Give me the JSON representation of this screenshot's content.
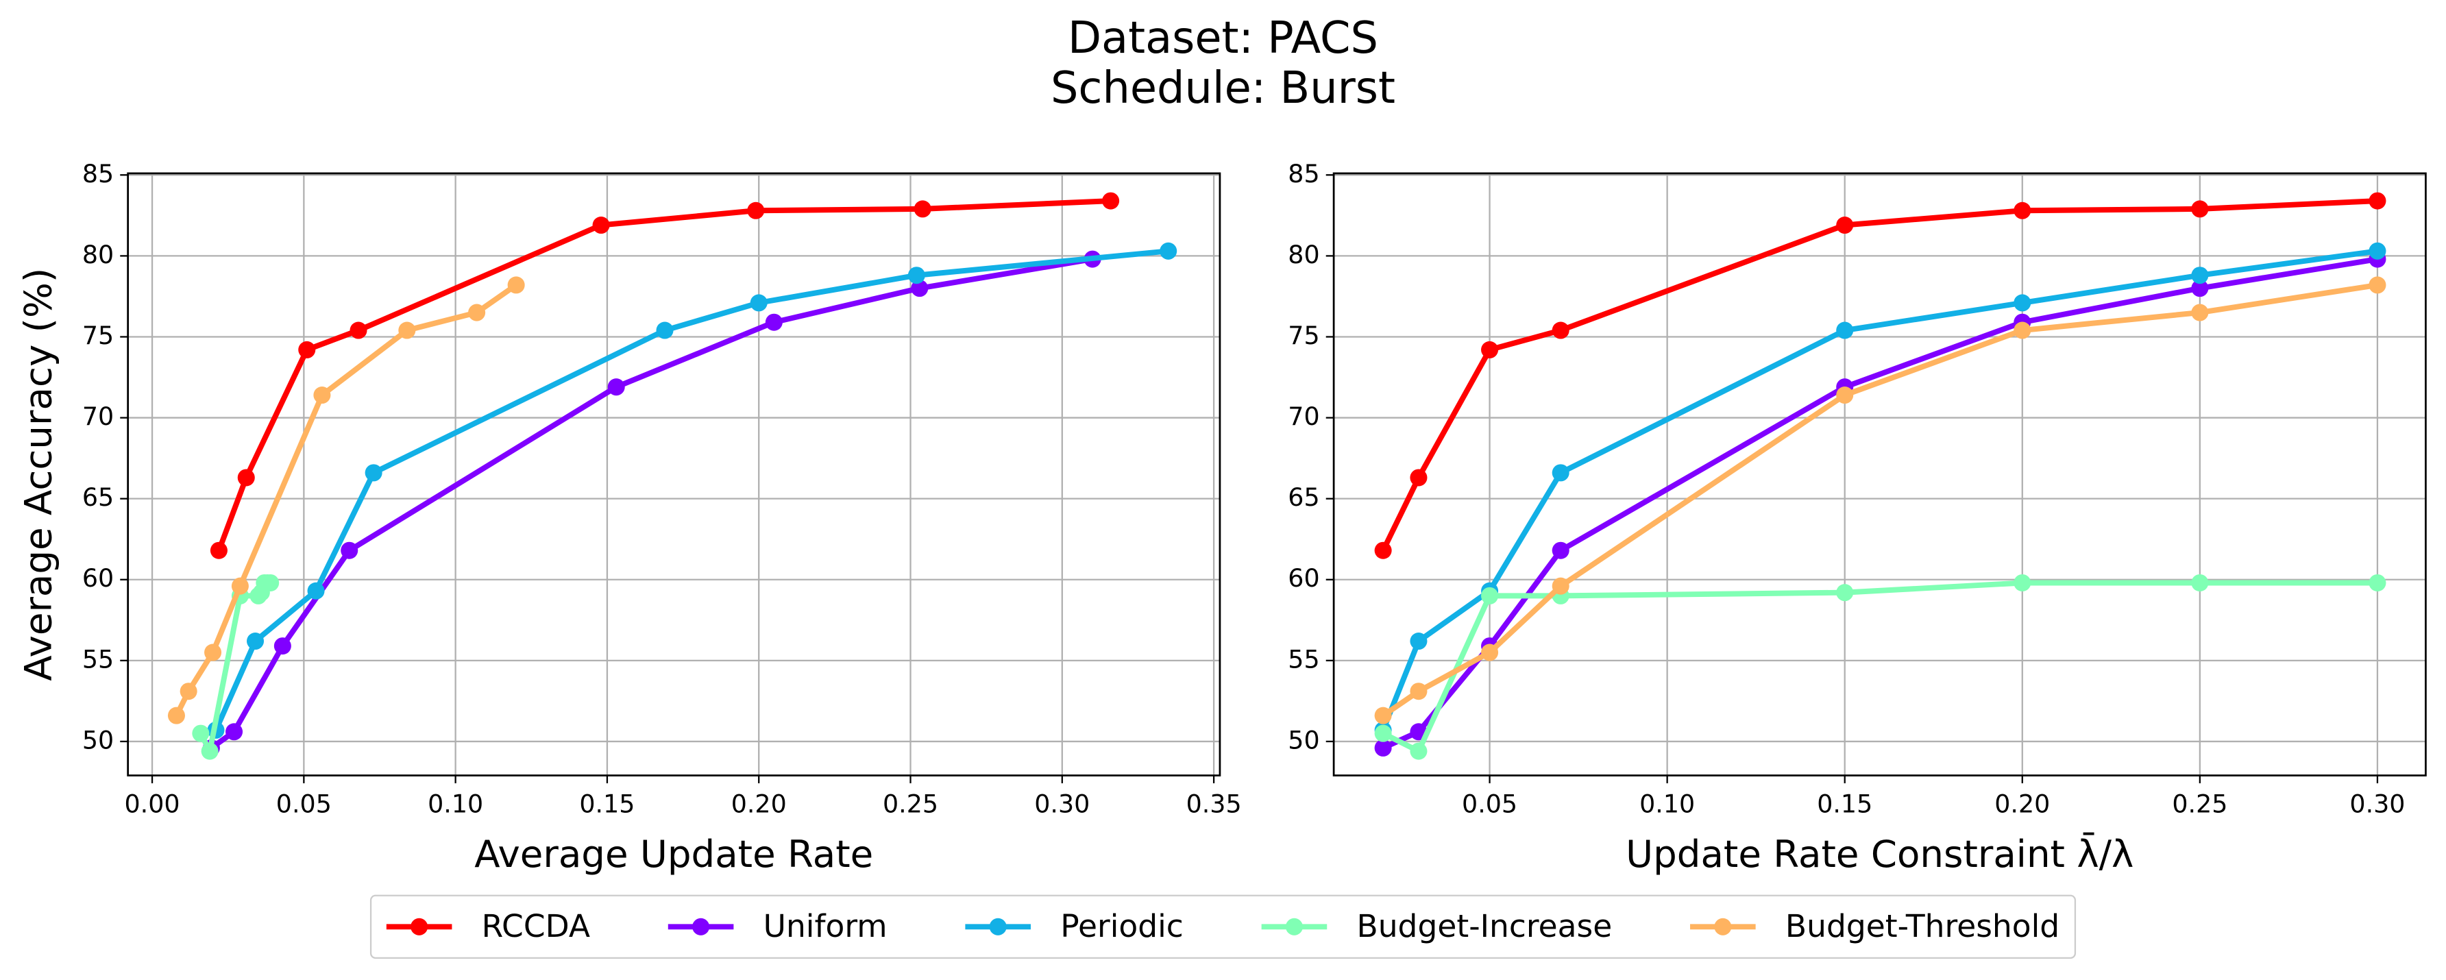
{
  "title": [
    "Dataset: PACS",
    "Schedule: Burst"
  ],
  "legend": "bottom",
  "chart_data": [
    {
      "type": "line",
      "xlabel": "Average Update Rate",
      "ylabel": "Average Accuracy (%)",
      "xlim": [
        -0.008,
        0.352
      ],
      "ylim": [
        47.9,
        85.1
      ],
      "grid": true,
      "xticks": [
        {
          "value": 0,
          "label": "0.00"
        },
        {
          "value": 0.05,
          "label": "0.05"
        },
        {
          "value": 0.1,
          "label": "0.10"
        },
        {
          "value": 0.15,
          "label": "0.15"
        },
        {
          "value": 0.2,
          "label": "0.20"
        },
        {
          "value": 0.25,
          "label": "0.25"
        },
        {
          "value": 0.3,
          "label": "0.30"
        },
        {
          "value": 0.35,
          "label": "0.35"
        }
      ],
      "yticks": [
        50,
        55,
        60,
        65,
        70,
        75,
        80,
        85
      ],
      "series": [
        {
          "name": "RCCDA",
          "color": "#ff0000",
          "x": [
            0.022,
            0.031,
            0.051,
            0.068,
            0.148,
            0.199,
            0.254,
            0.316
          ],
          "values": [
            61.8,
            66.3,
            74.2,
            75.4,
            81.9,
            82.8,
            82.9,
            83.4
          ]
        },
        {
          "name": "Uniform",
          "color": "#8000ff",
          "x": [
            0.0195,
            0.027,
            0.043,
            0.065,
            0.153,
            0.205,
            0.253,
            0.31
          ],
          "values": [
            49.6,
            50.6,
            55.9,
            61.8,
            71.9,
            75.9,
            78.0,
            79.8
          ]
        },
        {
          "name": "Periodic",
          "color": "#12b0e6",
          "x": [
            0.021,
            0.034,
            0.054,
            0.073,
            0.169,
            0.2,
            0.252,
            0.335
          ],
          "values": [
            50.7,
            56.2,
            59.3,
            66.6,
            75.4,
            77.1,
            78.8,
            80.3
          ]
        },
        {
          "name": "Budget-Increase",
          "color": "#80ffb4",
          "x": [
            0.016,
            0.019,
            0.029,
            0.035,
            0.036,
            0.037,
            0.038,
            0.039
          ],
          "values": [
            50.5,
            49.4,
            59.0,
            59.0,
            59.2,
            59.8,
            59.8,
            59.8
          ]
        },
        {
          "name": "Budget-Threshold",
          "color": "#ffb360",
          "x": [
            0.008,
            0.012,
            0.02,
            0.029,
            0.056,
            0.084,
            0.107,
            0.12
          ],
          "values": [
            51.6,
            53.1,
            55.5,
            59.6,
            71.4,
            75.4,
            76.5,
            78.2
          ]
        }
      ]
    },
    {
      "type": "line",
      "xlabel": "Update Rate Constraint λ̄/λ",
      "xlim": [
        0.0061,
        0.3136
      ],
      "ylim": [
        47.9,
        85.1
      ],
      "grid": true,
      "xticks": [
        {
          "value": 0.05,
          "label": "0.05"
        },
        {
          "value": 0.1,
          "label": "0.10"
        },
        {
          "value": 0.15,
          "label": "0.15"
        },
        {
          "value": 0.2,
          "label": "0.20"
        },
        {
          "value": 0.25,
          "label": "0.25"
        },
        {
          "value": 0.3,
          "label": "0.30"
        }
      ],
      "yticks": [
        50,
        55,
        60,
        65,
        70,
        75,
        80,
        85
      ],
      "x": [
        0.02,
        0.03,
        0.05,
        0.07,
        0.15,
        0.2,
        0.25,
        0.3
      ],
      "series": [
        {
          "color": "#ff0000",
          "values": [
            61.8,
            66.3,
            74.2,
            75.4,
            81.9,
            82.8,
            82.9,
            83.4
          ]
        },
        {
          "color": "#8000ff",
          "values": [
            49.6,
            50.6,
            55.9,
            61.8,
            71.9,
            75.9,
            78.0,
            79.8
          ]
        },
        {
          "color": "#12b0e6",
          "values": [
            50.7,
            56.2,
            59.3,
            66.6,
            75.4,
            77.1,
            78.8,
            80.3
          ]
        },
        {
          "color": "#80ffb4",
          "values": [
            50.5,
            49.4,
            59.0,
            59.0,
            59.2,
            59.8,
            59.8,
            59.8
          ]
        },
        {
          "color": "#ffb360",
          "values": [
            51.6,
            53.1,
            55.5,
            59.6,
            71.4,
            75.4,
            76.5,
            78.2
          ]
        }
      ]
    }
  ]
}
